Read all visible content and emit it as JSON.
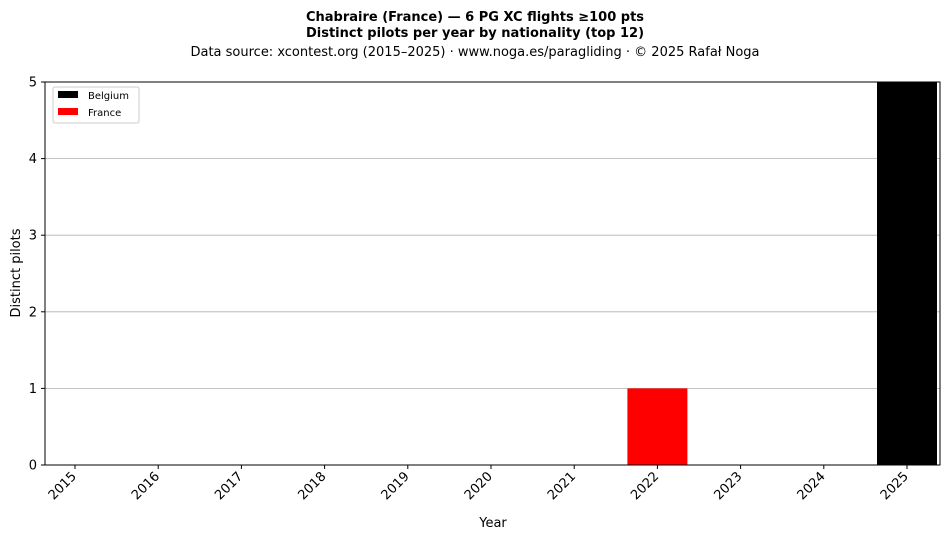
{
  "chart_data": {
    "type": "bar",
    "stacked": true,
    "title_lines": [
      "Chabraire (France)  —  6 PG XC flights ≥100 pts",
      "Distinct pilots per year by nationality (top 12)"
    ],
    "subtitle": "Data source: xcontest.org (2015–2025)  ·  www.noga.es/paragliding  ·  © 2025 Rafał Noga",
    "xlabel": "Year",
    "ylabel": "Distinct pilots",
    "categories": [
      "2015",
      "2016",
      "2017",
      "2018",
      "2019",
      "2020",
      "2021",
      "2022",
      "2023",
      "2024",
      "2025"
    ],
    "series": [
      {
        "name": "Belgium",
        "color": "#000000",
        "values": [
          0,
          0,
          0,
          0,
          0,
          0,
          0,
          0,
          0,
          0,
          5
        ]
      },
      {
        "name": "France",
        "color": "#ff0000",
        "values": [
          0,
          0,
          0,
          0,
          0,
          0,
          0,
          1,
          0,
          0,
          0
        ]
      }
    ],
    "ylim": [
      0,
      5
    ],
    "yticks": [
      0,
      1,
      2,
      3,
      4,
      5
    ],
    "grid": "y",
    "legend_position": "top-left"
  }
}
